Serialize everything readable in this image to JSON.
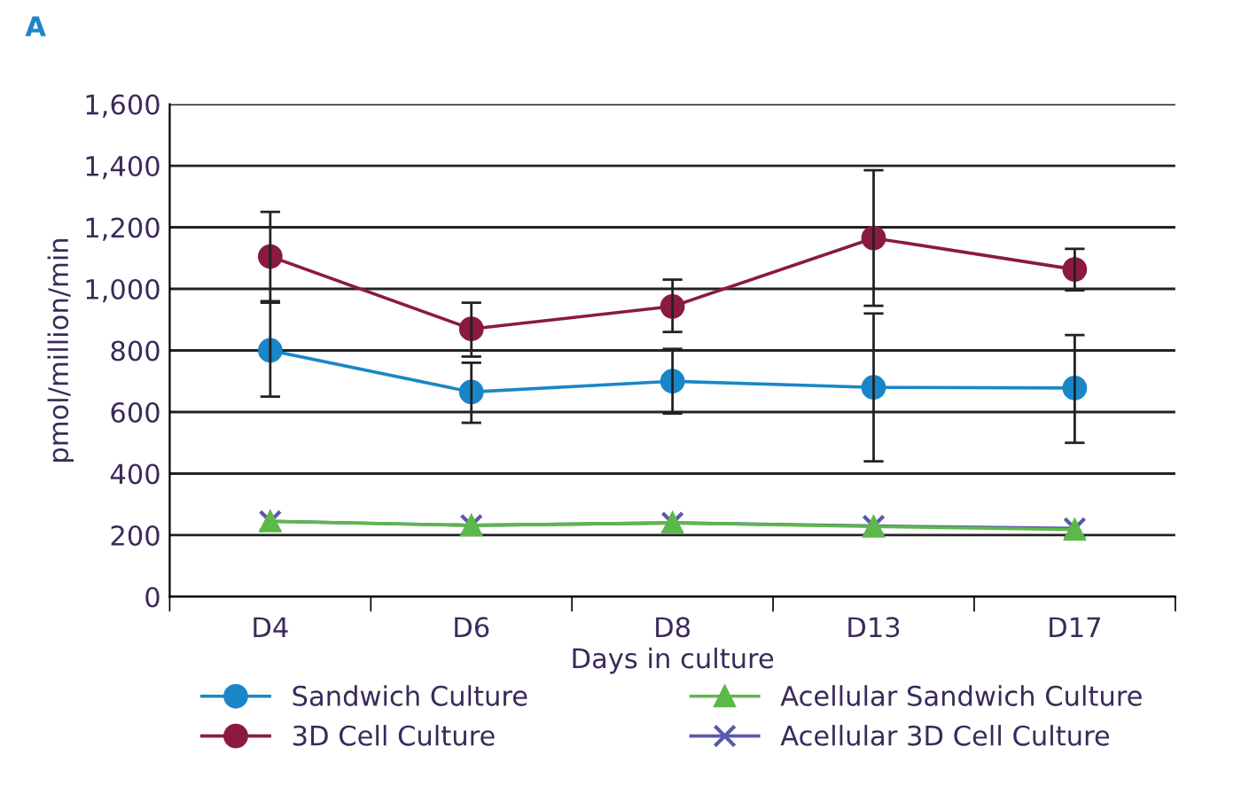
{
  "chart_data": {
    "type": "line",
    "title": "A",
    "xlabel": "Days in culture",
    "ylabel": "pmol/million/min",
    "categories": [
      "D4",
      "D6",
      "D8",
      "D13",
      "D17"
    ],
    "series": [
      {
        "name": "Sandwich Culture",
        "color": "#1a86c8",
        "marker": "circle",
        "values": [
          800,
          665,
          700,
          680,
          678
        ],
        "errors": [
          [
            650,
            960
          ],
          [
            565,
            760
          ],
          [
            595,
            805
          ],
          [
            440,
            920
          ],
          [
            500,
            850
          ]
        ]
      },
      {
        "name": "3D Cell Culture",
        "color": "#8b1a40",
        "marker": "circle",
        "values": [
          1105,
          870,
          943,
          1165,
          1063
        ],
        "errors": [
          [
            955,
            1250
          ],
          [
            780,
            955
          ],
          [
            860,
            1030
          ],
          [
            945,
            1385
          ],
          [
            995,
            1130
          ]
        ]
      },
      {
        "name": "Acellular Sandwich Culture",
        "color": "#5cb84a",
        "marker": "triangle",
        "values": [
          245,
          232,
          240,
          228,
          218
        ]
      },
      {
        "name": "Acellular 3D Cell Culture",
        "color": "#5a5aa8",
        "marker": "cross",
        "values": [
          245,
          232,
          240,
          230,
          222
        ]
      }
    ],
    "ylim": [
      0,
      1600
    ],
    "yticks": [
      0,
      {
        "value": 200,
        "label": "200"
      },
      {
        "value": 400,
        "label": "400"
      },
      {
        "value": 600,
        "label": "600"
      },
      {
        "value": 800,
        "label": "800"
      },
      {
        "value": 1000,
        "label": "1,000"
      },
      {
        "value": 1200,
        "label": "1,200"
      },
      {
        "value": 1400,
        "label": "1,400"
      },
      {
        "value": 1600,
        "label": "1,600"
      }
    ],
    "grid": "y",
    "legend": "bottom"
  }
}
